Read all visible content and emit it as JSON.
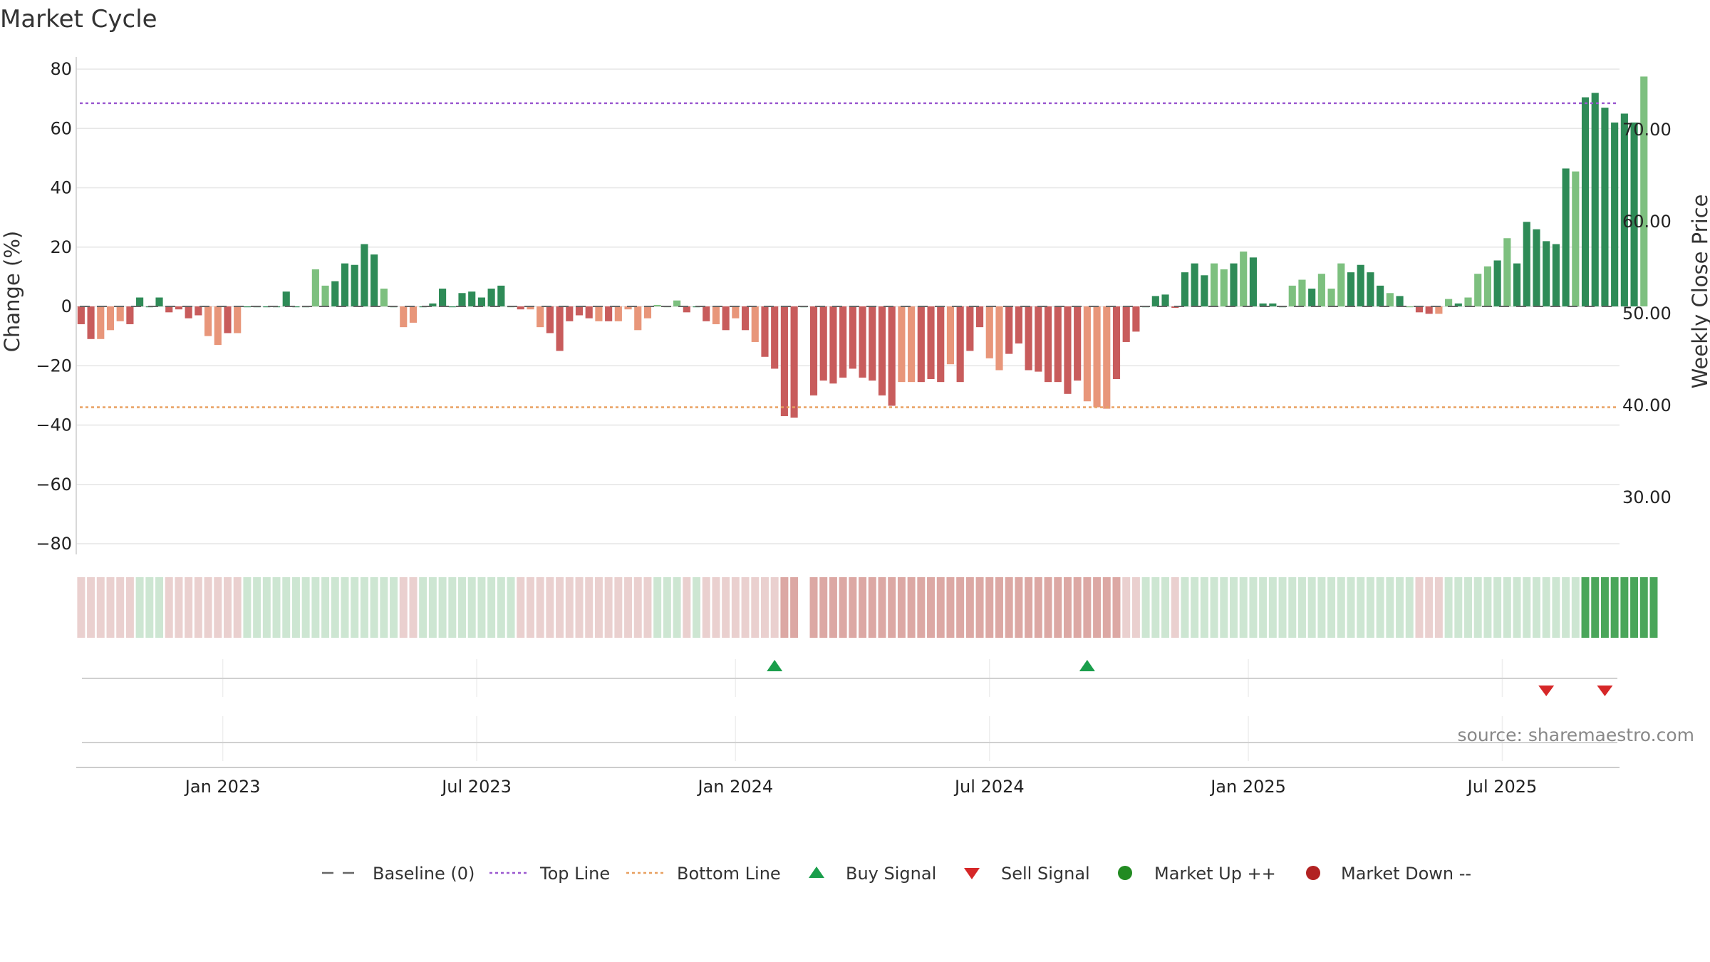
{
  "chart_data": {
    "type": "bar",
    "title": "Market Cycle",
    "ylabel": "Change (%)",
    "y2label": "Weekly Close Price",
    "ylim": [
      -80,
      80
    ],
    "y_ticks": [
      80,
      60,
      40,
      20,
      0,
      -20,
      -40,
      -60,
      -80
    ],
    "y_tick_labels": [
      "80",
      "60",
      "40",
      "20",
      "0",
      "−20",
      "−40",
      "−60",
      "−80"
    ],
    "y2_ticks": [
      70,
      60,
      50,
      40,
      30
    ],
    "y2_tick_labels": [
      "70.00",
      "60.00",
      "50.00",
      "40.00",
      "30.00"
    ],
    "x_tick_labels": [
      "Jan 2023",
      "Jul 2023",
      "Jan 2024",
      "Jul 2024",
      "Jan 2025",
      "Jul 2025"
    ],
    "x_tick_weeks": [
      15,
      41,
      67.5,
      93.5,
      120,
      146
    ],
    "baseline": 0,
    "top_line": 68.5,
    "bottom_line": -34,
    "weeks": 158,
    "values": [
      -6,
      -11,
      -11,
      -8,
      -5,
      -6,
      3,
      0,
      3,
      -2,
      -1,
      -4,
      -3,
      -10,
      -13,
      -9,
      -9,
      0,
      0,
      0,
      0,
      5,
      0,
      0,
      12.5,
      7,
      8.5,
      14.5,
      14,
      21,
      17.5,
      6,
      0,
      -7,
      -5.5,
      0,
      1,
      6,
      0,
      4.5,
      5,
      3,
      6,
      7,
      0,
      -1,
      -1,
      -7,
      -9,
      -15,
      -5,
      -3,
      -4,
      -5,
      -5,
      -5,
      -1,
      -8,
      -4,
      0.5,
      0,
      2,
      -2,
      0,
      -5,
      -6,
      -8,
      -4,
      -8,
      -12,
      -17,
      -21,
      -37,
      -37.5,
      0,
      -30,
      -25,
      -26,
      -24,
      -21,
      -24,
      -25,
      -30,
      -33.5,
      -25.5,
      -25.5,
      -25.5,
      -24.5,
      -25.5,
      -19.5,
      -25.5,
      -15,
      -7,
      -17.5,
      -21.5,
      -16,
      -12.5,
      -21.5,
      -22,
      -25.5,
      -25.5,
      -29.5,
      -25,
      -32,
      -34,
      -34.5,
      -24.5,
      -12,
      -8.5,
      0,
      3.5,
      4,
      -0.5,
      11.5,
      14.5,
      10.5,
      14.5,
      12.5,
      14.5,
      18.5,
      16.5,
      1,
      1,
      0,
      7,
      9,
      6,
      11,
      6,
      14.5,
      11.5,
      14,
      11.5,
      7,
      4.5,
      3.5,
      0,
      -2,
      -2.5,
      -2.5,
      2.5,
      1,
      3,
      11,
      13.5,
      15.5,
      23,
      14.5,
      28.5,
      26,
      22,
      21,
      46.5,
      45.5,
      70.5,
      72,
      67,
      62,
      65,
      62,
      77.5
    ],
    "bar_tones": "ddlllddddddddlldldddddddlldddddldlldddddddddldlldddddldllllllldddldldlddddddddddddddlldddldddllddddddddlllddddddddddlldlddddlldlllddddldlddlldllldlddddddlddddddlldl",
    "buy_signals_week": [
      71,
      103
    ],
    "sell_signals_week": [
      150,
      156
    ],
    "strip_levels": [
      1,
      1,
      1,
      1,
      1,
      1,
      0,
      0,
      1,
      1,
      1,
      1,
      1,
      1,
      1,
      1,
      1,
      0,
      0,
      0,
      0,
      0,
      0,
      0,
      0,
      0,
      0,
      0,
      0,
      0,
      0,
      0,
      1,
      1,
      1,
      1,
      0,
      0,
      0,
      0,
      0,
      0,
      0,
      0,
      1,
      1,
      1,
      1,
      1,
      1,
      1,
      1,
      1,
      1,
      1,
      1,
      1,
      1,
      1,
      1,
      0,
      0,
      1,
      1,
      1,
      1,
      1,
      1,
      1,
      1,
      1,
      1,
      2,
      2,
      -1,
      2,
      2,
      2,
      2,
      2,
      2,
      2,
      2,
      2,
      2,
      2,
      2,
      2,
      2,
      2,
      2,
      2,
      2,
      2,
      2,
      2,
      2,
      2,
      2,
      2,
      2,
      2,
      2,
      2,
      2,
      2,
      2,
      1,
      1,
      0,
      0,
      0,
      0,
      0,
      0,
      0,
      0,
      0,
      0,
      0,
      0,
      0,
      0,
      0,
      0,
      0,
      0,
      0,
      0,
      0,
      0,
      0,
      0,
      0,
      0,
      0,
      1,
      1,
      1,
      0,
      0,
      0,
      0,
      0,
      0,
      0,
      0,
      0,
      0,
      0,
      0,
      0,
      0,
      0,
      3,
      3,
      3,
      3,
      3,
      3,
      3,
      3
    ],
    "strip_colors": {
      "neg1": "#ead0cf",
      "neg2": "#dca8a4",
      "pos1": "#cde6d2",
      "pos2": "#a9d5b4",
      "pos3": "#4aa65a"
    },
    "colors": {
      "pos_dark": "#2e8b57",
      "pos_light": "#7dc07f",
      "neg_dark": "#c85c5c",
      "neg_light": "#e8967a",
      "top_line": "#9b59d0",
      "bottom_line": "#e8a060",
      "buy": "#1a9e4b",
      "sell": "#d62728",
      "market_up": "#228b22",
      "market_down": "#b22222",
      "baseline": "#666666"
    },
    "legend": [
      {
        "key": "baseline",
        "label": "Baseline (0)"
      },
      {
        "key": "top",
        "label": "Top Line"
      },
      {
        "key": "bottom",
        "label": "Bottom Line"
      },
      {
        "key": "buy",
        "label": "Buy Signal"
      },
      {
        "key": "sell",
        "label": "Sell Signal"
      },
      {
        "key": "up",
        "label": "Market Up ++"
      },
      {
        "key": "down",
        "label": "Market Down --"
      }
    ],
    "source": "source: sharemaestro.com"
  }
}
